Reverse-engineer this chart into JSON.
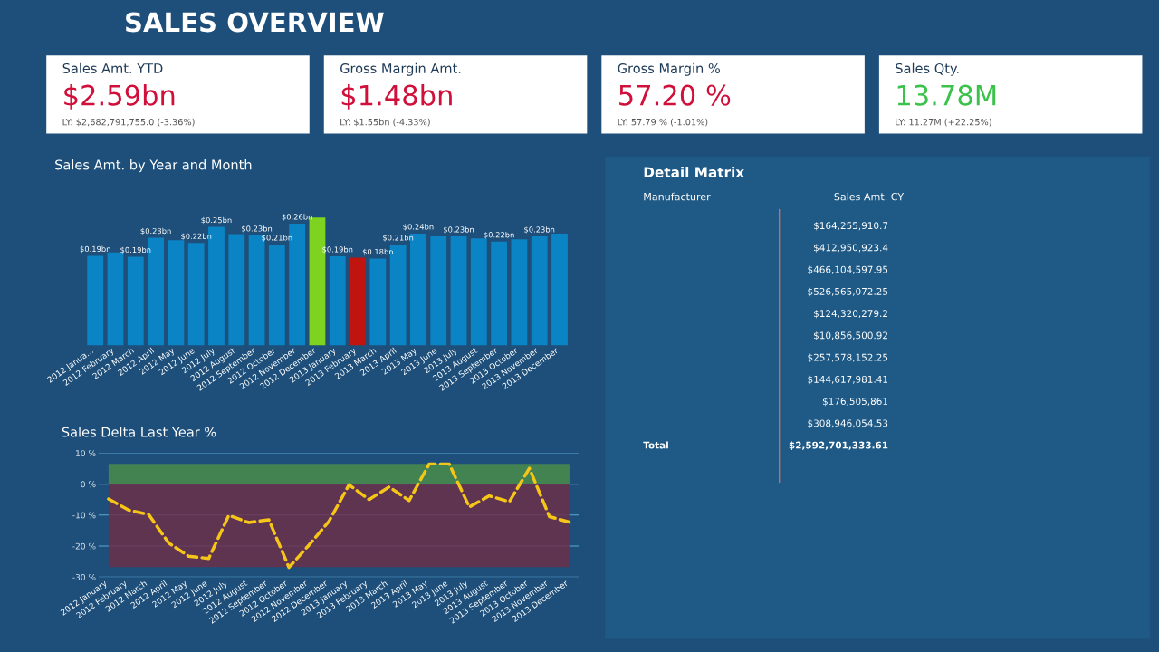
{
  "chart_data": [
    {
      "type": "other",
      "title": "SALES OVERVIEW"
    },
    {
      "type": "other",
      "title": "Sales Amt. YTD",
      "annotations": [
        "$2.59bn",
        "LY: $2,682,791,755.0 (-3.36%)"
      ]
    },
    {
      "type": "other",
      "title": "Gross Margin Amt.",
      "annotations": [
        "$1.48bn",
        "LY: $1.55bn (-4.33%)"
      ]
    },
    {
      "type": "other",
      "title": "Gross Margin %",
      "annotations": [
        "57.20 %",
        "LY: 57.79 % (-1.01%)"
      ]
    },
    {
      "type": "other",
      "title": "Sales Qty.",
      "annotations": [
        "13.78M",
        "LY: 11.27M (+22.25%)"
      ]
    },
    {
      "type": "bar",
      "title": "Sales Amt. by Year and Month",
      "categories": [
        "2012 Janua…",
        "2012 February",
        "2012 March",
        "2012 April",
        "2012 May",
        "2012 June",
        "2012 July",
        "2012 August",
        "2012 September",
        "2012 October",
        "2012 November",
        "2012 December",
        "2013 January",
        "2013 February",
        "2013 March",
        "2013 April",
        "2013 May",
        "2013 June",
        "2013 July",
        "2013 August",
        "2013 September",
        "2013 October",
        "2013 November",
        "2013 December"
      ],
      "values": [
        0.19,
        0.197,
        0.188,
        0.228,
        0.223,
        0.217,
        0.251,
        0.236,
        0.233,
        0.214,
        0.258,
        0.271,
        0.189,
        0.186,
        0.184,
        0.214,
        0.237,
        0.231,
        0.231,
        0.227,
        0.22,
        0.225,
        0.231,
        0.237
      ],
      "colors": [
        "#0a84c4",
        "#0a84c4",
        "#0a84c4",
        "#0a84c4",
        "#0a84c4",
        "#0a84c4",
        "#0a84c4",
        "#0a84c4",
        "#0a84c4",
        "#0a84c4",
        "#0a84c4",
        "#7ed321",
        "#0a84c4",
        "#c0140f",
        "#0a84c4",
        "#0a84c4",
        "#0a84c4",
        "#0a84c4",
        "#0a84c4",
        "#0a84c4",
        "#0a84c4",
        "#0a84c4",
        "#0a84c4",
        "#0a84c4"
      ],
      "value_labels": [
        "$0.19bn",
        null,
        "$0.19bn",
        "$0.23bn",
        null,
        "$0.22bn",
        "$0.25bn",
        null,
        "$0.23bn",
        "$0.21bn",
        "$0.26bn",
        null,
        "$0.19bn",
        null,
        "$0.18bn",
        "$0.21bn",
        "$0.24bn",
        null,
        "$0.23bn",
        null,
        "$0.22bn",
        null,
        "$0.23bn",
        null
      ]
    },
    {
      "type": "line",
      "title": "Sales Delta Last Year %",
      "categories": [
        "2012 January",
        "2012 February",
        "2012 March",
        "2012 April",
        "2012 May",
        "2012 June",
        "2012 July",
        "2012 August",
        "2012 September",
        "2012 October",
        "2012 November",
        "2012 December",
        "2013 January",
        "2013 February",
        "2013 March",
        "2013 April",
        "2013 May",
        "2013 June",
        "2013 July",
        "2013 August",
        "2013 September",
        "2013 October",
        "2013 November",
        "2013 December"
      ],
      "series": [
        {
          "color": "#f5c518",
          "values": [
            -4.8,
            -8.4,
            -9.8,
            -19,
            -23.3,
            -24,
            -10.1,
            -12.4,
            -11.5,
            -26.9,
            -19.7,
            -12,
            -0.2,
            -5,
            -0.9,
            -5.3,
            6.5,
            6.5,
            -7.4,
            -3.8,
            -5.7,
            5.1,
            -10.5,
            -12.3
          ]
        }
      ],
      "line_style": "dashed",
      "marker": "none",
      "grid": "y",
      "ylim": [
        -30,
        10
      ],
      "yticks": [
        {
          "value": -30,
          "label": "-30 %"
        },
        {
          "value": -20,
          "label": "-20 %"
        },
        {
          "value": -10,
          "label": "-10 %"
        },
        {
          "value": 0,
          "label": "0 %"
        },
        {
          "value": 10,
          "label": "10 %"
        }
      ],
      "bands": [
        {
          "axis": "y",
          "from": 0,
          "to": 6.5,
          "color": "#4a8c4a"
        },
        {
          "axis": "y",
          "from": -26.8,
          "to": 0,
          "color": "#6b2f4a"
        }
      ]
    },
    {
      "type": "other",
      "title": "Detail Matrix",
      "annotations": [
        "Manufacturer",
        "Sales Amt. CY",
        "$164,255,910.7",
        "$412,950,923.4",
        "$466,104,597.95",
        "$526,565,072.25",
        "$124,320,279.2",
        "$10,856,500.92",
        "$257,578,152.25",
        "$144,617,981.41",
        "$176,505,861",
        "$308,946,054.53",
        "Total",
        "$2,592,701,333.61"
      ]
    }
  ]
}
